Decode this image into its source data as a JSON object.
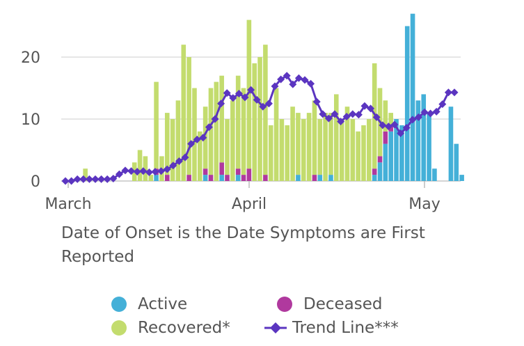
{
  "chart_data": {
    "type": "bar",
    "stacked": true,
    "x_ticks": [
      "March",
      "April",
      "May"
    ],
    "y_ticks": [
      0,
      10,
      20
    ],
    "ylim": [
      0,
      28
    ],
    "grid": true,
    "caption": "Date of Onset is the Date Symptoms are First Reported",
    "series": [
      {
        "name": "Active",
        "color": "#44b0d8",
        "values": [
          0,
          0,
          0,
          0,
          0,
          0,
          0,
          0,
          0,
          0,
          0,
          0,
          0,
          0,
          0,
          0,
          0,
          1,
          0,
          0,
          0,
          0,
          0,
          0,
          0,
          0,
          1,
          0,
          0,
          1,
          0,
          0,
          1,
          0,
          0,
          0,
          0,
          0,
          0,
          0,
          0,
          0,
          0,
          1,
          0,
          0,
          0,
          1,
          0,
          1,
          0,
          0,
          0,
          0,
          0,
          0,
          0,
          1,
          3,
          6,
          8,
          10,
          9,
          25,
          27,
          13,
          14,
          11,
          2,
          0,
          0,
          12,
          6,
          1
        ]
      },
      {
        "name": "Deceased",
        "color": "#b0399e",
        "values": [
          0,
          0,
          0,
          0,
          0,
          0,
          0,
          0,
          0,
          0,
          0,
          0,
          0,
          0,
          0,
          0,
          0,
          1,
          0,
          1,
          0,
          0,
          0,
          1,
          0,
          0,
          1,
          1,
          0,
          2,
          1,
          0,
          1,
          1,
          2,
          0,
          0,
          1,
          0,
          0,
          0,
          0,
          0,
          0,
          0,
          0,
          1,
          0,
          0,
          0,
          0,
          0,
          0,
          0,
          0,
          0,
          0,
          1,
          1,
          2,
          1,
          0,
          0,
          0,
          0,
          0,
          0,
          0,
          0,
          0,
          0,
          0,
          0,
          0
        ]
      },
      {
        "name": "Recovered*",
        "color": "#c3dc6e",
        "values": [
          0,
          0,
          0,
          0,
          2,
          0,
          0,
          0,
          0,
          0,
          0,
          0,
          0,
          3,
          5,
          4,
          1,
          14,
          4,
          10,
          10,
          13,
          22,
          19,
          15,
          8,
          10,
          14,
          16,
          14,
          9,
          13,
          15,
          14,
          24,
          19,
          20,
          21,
          9,
          15,
          10,
          9,
          12,
          10,
          10,
          11,
          12,
          9,
          11,
          10,
          14,
          10,
          12,
          10,
          8,
          9,
          10,
          17,
          11,
          5,
          2,
          0,
          0,
          0,
          0,
          0,
          0,
          0,
          0,
          0,
          0,
          0,
          0,
          0
        ]
      },
      {
        "name": "Trend Line***",
        "color": "#5b35c0",
        "type": "line",
        "values": [
          0,
          0,
          0.3,
          0.3,
          0.3,
          0.3,
          0.3,
          0.3,
          0.4,
          1.1,
          1.7,
          1.6,
          1.5,
          1.6,
          1.4,
          1.5,
          1.6,
          1.9,
          2.5,
          3.2,
          3.8,
          6.0,
          6.7,
          7.0,
          8.7,
          10.0,
          12.5,
          14.2,
          13.4,
          14.1,
          13.5,
          14.7,
          13.1,
          12.0,
          12.5,
          15.3,
          16.4,
          17.0,
          15.6,
          16.6,
          16.3,
          15.7,
          12.8,
          10.8,
          10.1,
          10.8,
          9.6,
          10.4,
          10.8,
          10.7,
          12.1,
          11.7,
          10.3,
          9.0,
          8.8,
          9.1,
          7.7,
          8.6,
          9.9,
          10.3,
          11.1,
          10.9,
          11.2,
          12.4,
          14.3,
          14.3
        ]
      }
    ]
  },
  "legend": [
    {
      "label": "Active",
      "color": "#44b0d8",
      "icon": "circle"
    },
    {
      "label": "Deceased",
      "color": "#b0399e",
      "icon": "circle"
    },
    {
      "label": "Recovered*",
      "color": "#c3dc6e",
      "icon": "circle"
    },
    {
      "label": "Trend Line***",
      "color": "#5b35c0",
      "icon": "line-diamond"
    }
  ]
}
